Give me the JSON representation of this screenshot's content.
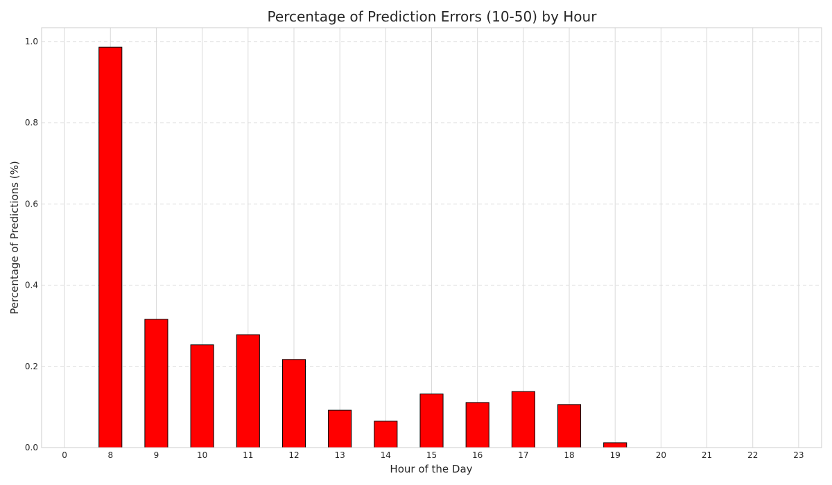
{
  "chart_data": {
    "type": "bar",
    "title": "Percentage of Prediction Errors (10-50) by Hour",
    "xlabel": "Hour of the Day",
    "ylabel": "Percentage of Predictions (%)",
    "categories": [
      "0",
      "8",
      "9",
      "10",
      "11",
      "12",
      "13",
      "14",
      "15",
      "16",
      "17",
      "18",
      "19",
      "20",
      "21",
      "22",
      "23"
    ],
    "values": [
      0.0,
      0.986,
      0.316,
      0.253,
      0.278,
      0.217,
      0.092,
      0.065,
      0.132,
      0.111,
      0.138,
      0.106,
      0.012,
      0.0,
      0.0,
      0.0,
      0.0
    ],
    "ylim": [
      0,
      1.034
    ],
    "yticks": [
      0.0,
      0.2,
      0.4,
      0.6,
      0.8,
      1.0
    ],
    "ytick_labels": [
      "0.0",
      "0.2",
      "0.4",
      "0.6",
      "0.8",
      "1.0"
    ],
    "grid": true,
    "colors": {
      "bar_fill": "#ff0000",
      "bar_edge": "#000000",
      "grid": "#d9d9d9",
      "frame": "#cccccc"
    }
  }
}
